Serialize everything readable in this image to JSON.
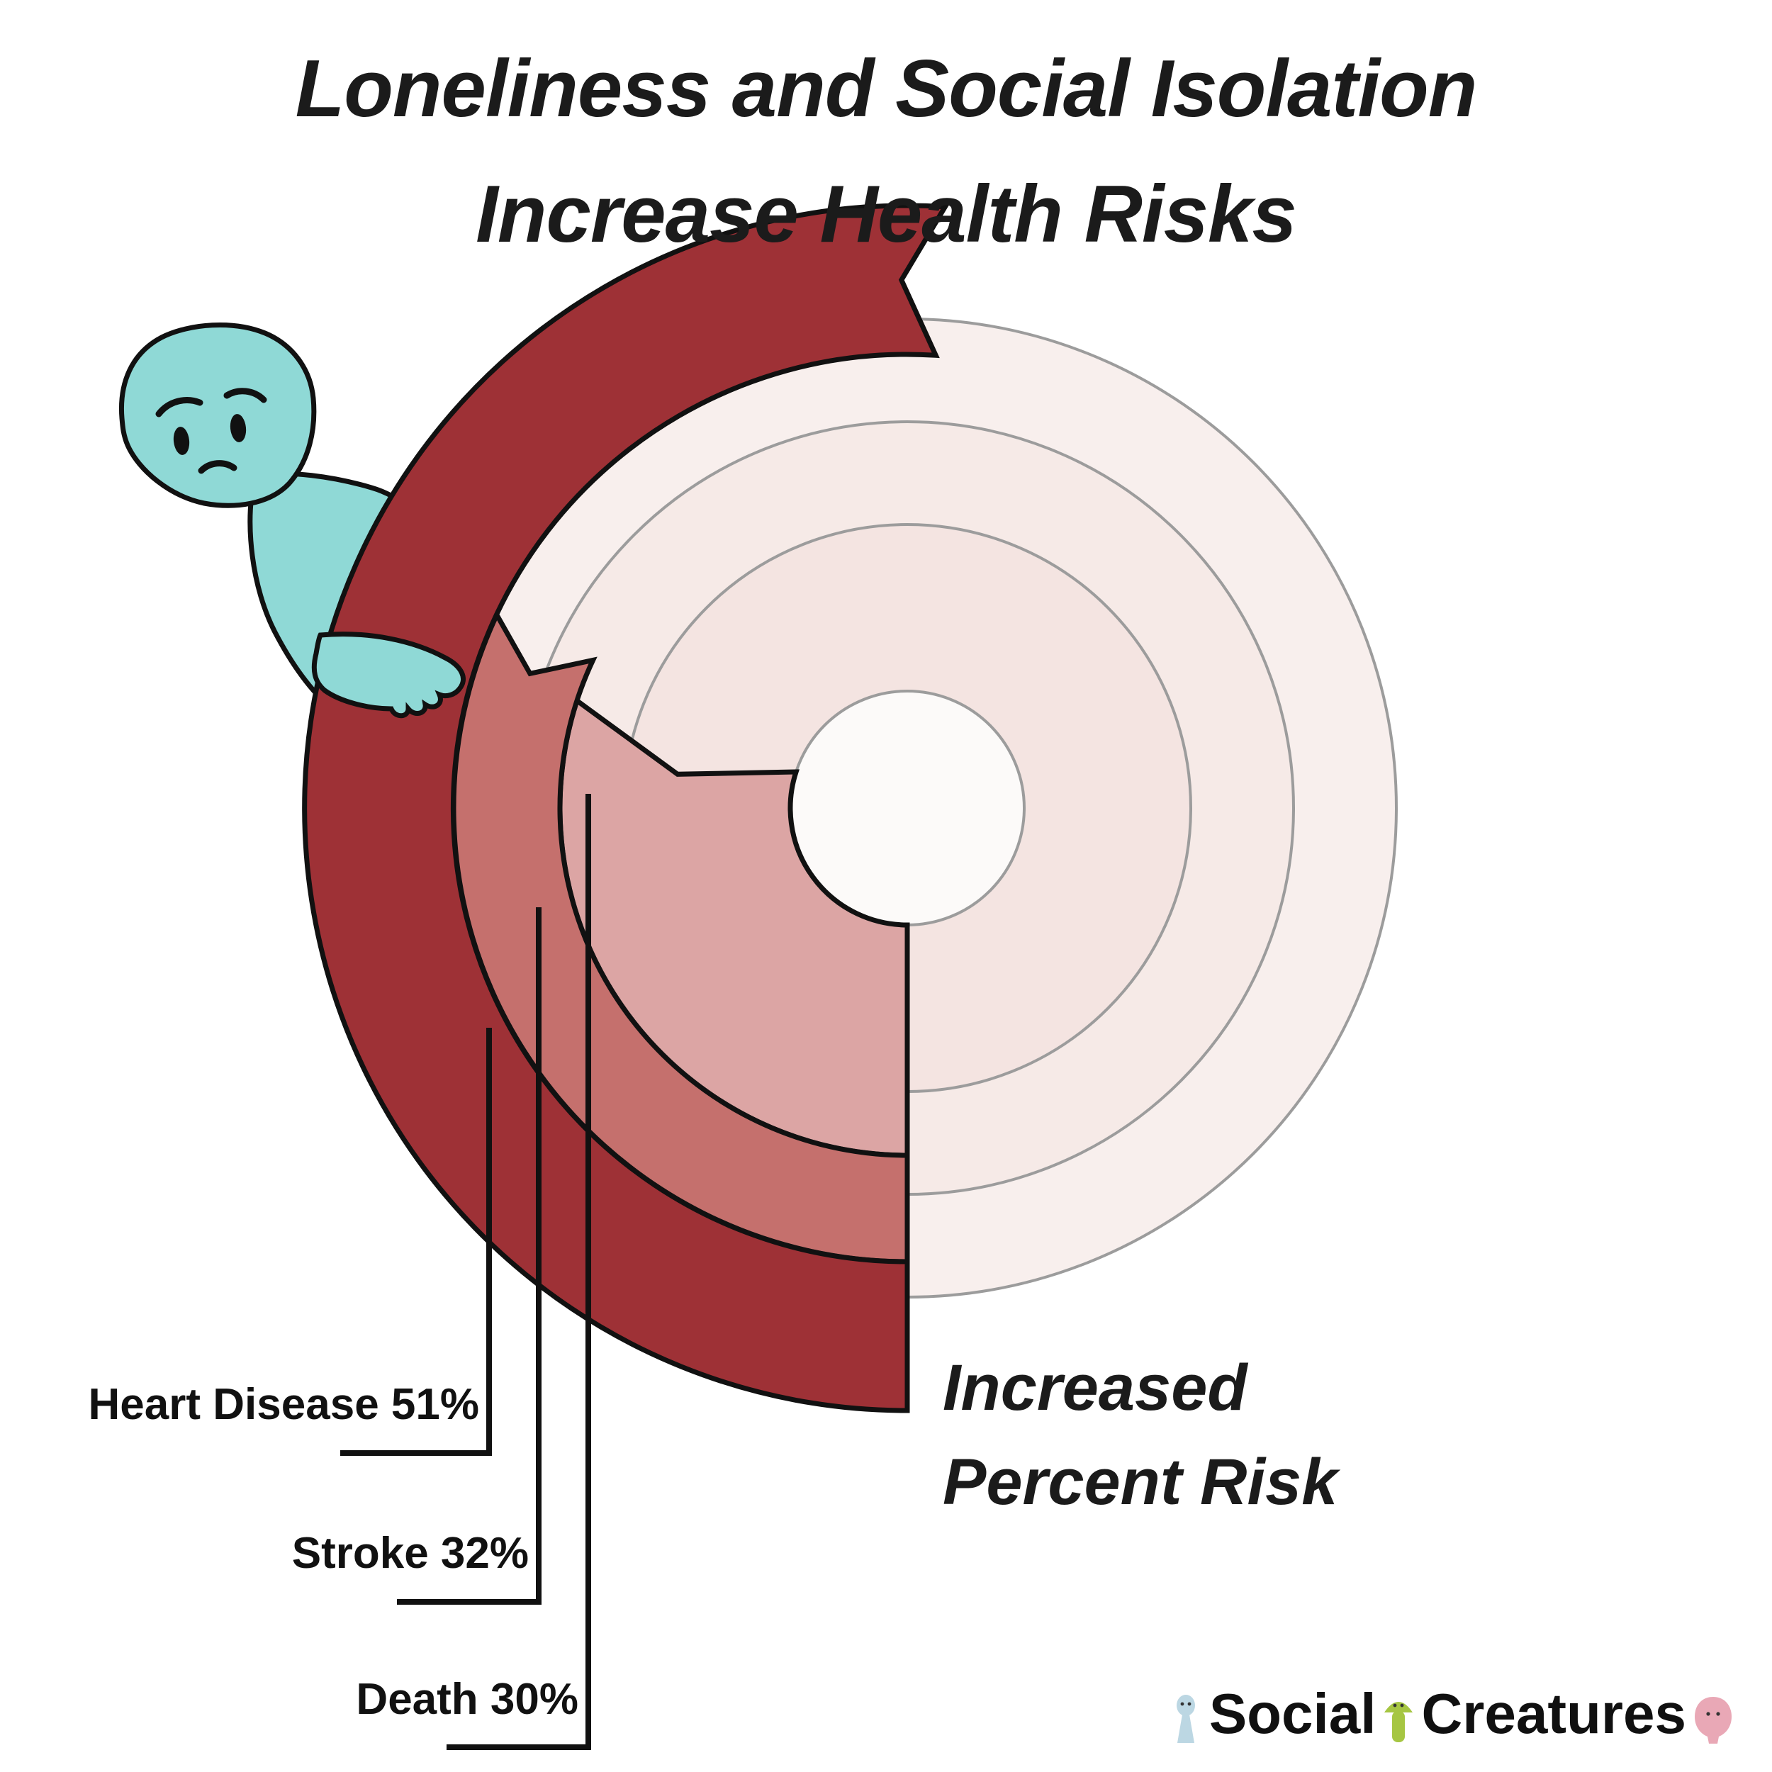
{
  "title": {
    "line1": "Loneliness and Social Isolation",
    "line2": "Increase Health Risks"
  },
  "chart_data": {
    "type": "bar",
    "subtype": "radial-gauge",
    "title": "Loneliness and Social Isolation Increase Health Risks",
    "categories": [
      "Heart Disease",
      "Stroke",
      "Death"
    ],
    "values": [
      51,
      32,
      30
    ],
    "unit": "%",
    "annotation": "Increased Percent Risk",
    "colors": [
      "#9e3136",
      "#c5706d",
      "#dca5a4"
    ],
    "ring_fill_colors": [
      "#f8efed",
      "#f6eae7",
      "#f4e4e1",
      "#fcfaf9"
    ],
    "ring_stroke_color": "#9c9c9c",
    "reference_max_percent": 100,
    "legend_position": "none",
    "grid": "concentric-rings"
  },
  "labels": [
    "Heart Disease 51%",
    "Stroke 32%",
    "Death 30%"
  ],
  "annotation": {
    "line1": "Increased",
    "line2": "Percent Risk"
  },
  "logo": {
    "word1": "Social",
    "word2": "Creatures"
  },
  "creature_color": "#8fd9d6",
  "logo_icon_colors": {
    "blue": "#bcd7e3",
    "green": "#a6c642",
    "pink": "#e9a8b6"
  }
}
